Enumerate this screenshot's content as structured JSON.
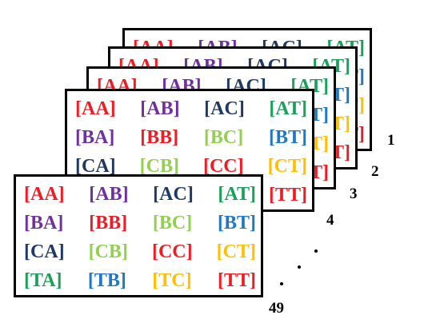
{
  "grid": [
    [
      "[AA]",
      "[AB]",
      "[AC]",
      "[AT]"
    ],
    [
      "[BA]",
      "[BB]",
      "[BC]",
      "[BT]"
    ],
    [
      "[CA]",
      "[CB]",
      "[CC]",
      "[CT]"
    ],
    [
      "[TA]",
      "[TB]",
      "[TC]",
      "[TT]"
    ]
  ],
  "colors": {
    "red": "#ee1c24",
    "purple": "#7030a0",
    "navy": "#1f3864",
    "green": "#1aa05a",
    "light_green": "#92d050",
    "blue": "#1f78c1",
    "gold": "#ffc000"
  },
  "grid_colors": [
    [
      "red",
      "purple",
      "navy",
      "green"
    ],
    [
      "purple",
      "red",
      "light_green",
      "blue"
    ],
    [
      "navy",
      "light_green",
      "red",
      "gold"
    ],
    [
      "green",
      "blue",
      "gold",
      "red"
    ]
  ],
  "layer_numbers": [
    "1",
    "2",
    "3",
    "4",
    "49"
  ]
}
